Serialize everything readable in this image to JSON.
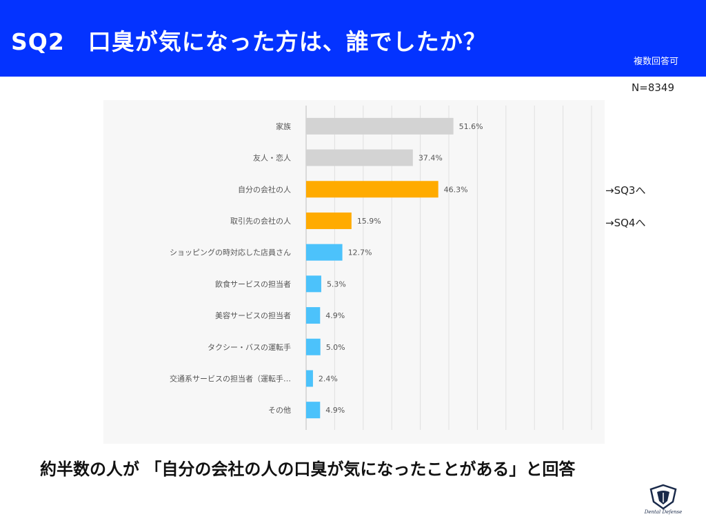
{
  "header": {
    "title": "SQ2　口臭が気になった方は、誰でしたか？",
    "multi_answer": "複数回答可",
    "bg_color": "#0433ff"
  },
  "sample_size": "N=8349",
  "annotations": [
    {
      "text": "→SQ3へ",
      "category": "自分の会社の人"
    },
    {
      "text": "→SQ4へ",
      "category": "取引先の会社の人"
    }
  ],
  "conclusion": "約半数の人が 「自分の会社の人の口臭が気になったことがある」と回答",
  "logo": {
    "text": "Dental Defense",
    "icon": "tooth-shield-icon"
  },
  "chart_data": {
    "type": "bar",
    "orientation": "horizontal",
    "title": "",
    "xlabel": "",
    "ylabel": "",
    "xlim": [
      0,
      100
    ],
    "grid": true,
    "value_suffix": "%",
    "categories": [
      "家族",
      "友人・恋人",
      "自分の会社の人",
      "取引先の会社の人",
      "ショッピングの時対応した店員さん",
      "飲食サービスの担当者",
      "美容サービスの担当者",
      "タクシー・バスの運転手",
      "交通系サービスの担当者（運転手…",
      "その他"
    ],
    "values": [
      51.6,
      37.4,
      46.3,
      15.9,
      12.7,
      5.3,
      4.9,
      5.0,
      2.4,
      4.9
    ],
    "value_labels": [
      "51.6%",
      "37.4%",
      "46.3%",
      "15.9%",
      "12.7%",
      "5.3%",
      "4.9%",
      "5.0%",
      "2.4%",
      "4.9%"
    ],
    "colors": [
      "#d3d3d3",
      "#d3d3d3",
      "#ffab00",
      "#ffab00",
      "#4cc2fb",
      "#4cc2fb",
      "#4cc2fb",
      "#4cc2fb",
      "#4cc2fb",
      "#4cc2fb"
    ]
  }
}
